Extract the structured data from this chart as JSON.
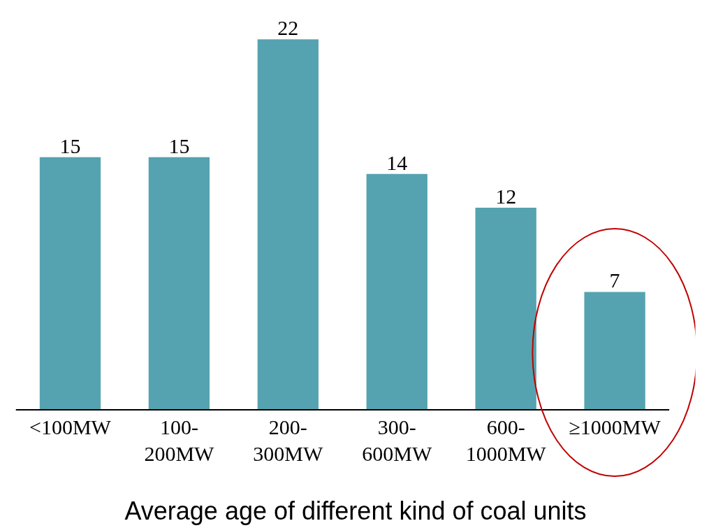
{
  "chart_data": {
    "type": "bar",
    "title": "Average age of different kind of coal units",
    "categories": [
      "<100MW",
      "100-200MW",
      "200-300MW",
      "300-600MW",
      "600-1000MW",
      "≥1000MW"
    ],
    "values": [
      15,
      15,
      22,
      14,
      12,
      7
    ],
    "color": "#55a3b0",
    "data_labels": true,
    "grid": false
  }
}
